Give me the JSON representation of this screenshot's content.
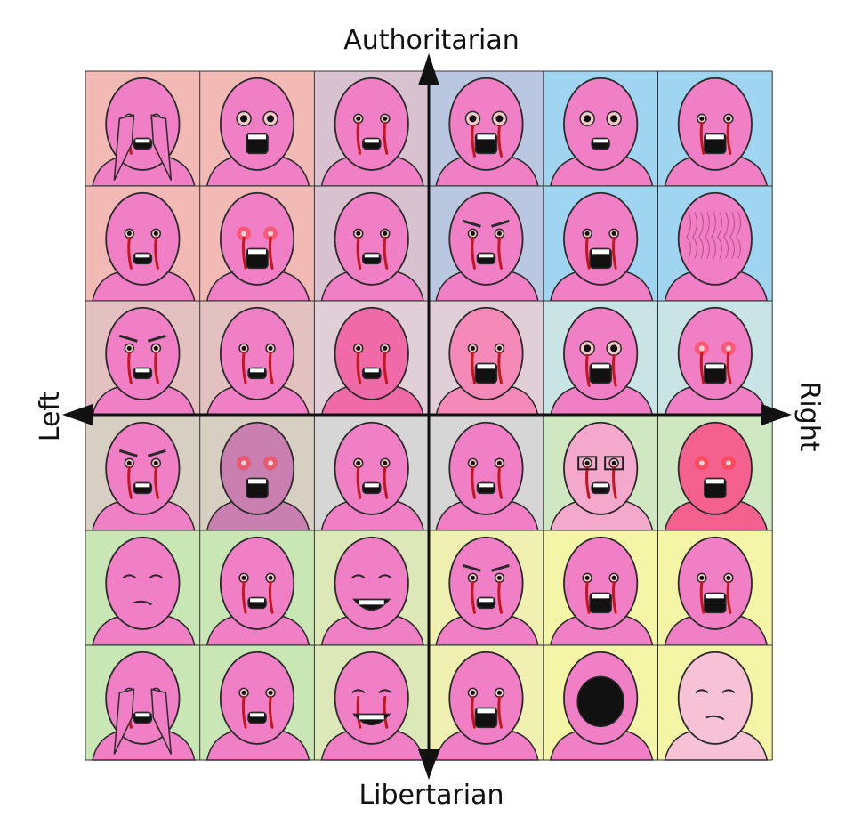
{
  "axes": {
    "top": "Authoritarian",
    "bottom": "Libertarian",
    "left": "Left",
    "right": "Right"
  },
  "grid": {
    "rows": 6,
    "cols": 6,
    "cells": [
      {
        "bg": "#f2b9b5",
        "head": "#f07fc6",
        "eyes": "hands",
        "tears": true
      },
      {
        "bg": "#f2b9b5",
        "head": "#f07fc6",
        "eyes": "wide",
        "tears": false
      },
      {
        "bg": "#d9c2cf",
        "head": "#f07fc6",
        "eyes": "small",
        "tears": true
      },
      {
        "bg": "#b9c8e0",
        "head": "#f07fc6",
        "eyes": "wide",
        "tears": true
      },
      {
        "bg": "#9fd5f0",
        "head": "#f07fc6",
        "eyes": "bulging",
        "tears": false
      },
      {
        "bg": "#9fd5f0",
        "head": "#f07fc6",
        "eyes": "crying",
        "tears": true
      },
      {
        "bg": "#f2b9b5",
        "head": "#f07fc6",
        "eyes": "sad",
        "tears": true
      },
      {
        "bg": "#f2b9b5",
        "head": "#f07fc6",
        "eyes": "glowing",
        "tears": true
      },
      {
        "bg": "#d9c2cf",
        "head": "#f07fc6",
        "eyes": "small",
        "tears": true
      },
      {
        "bg": "#b9c8e0",
        "head": "#f07fc6",
        "eyes": "angry",
        "tears": true
      },
      {
        "bg": "#9fd5f0",
        "head": "#f07fc6",
        "eyes": "crying",
        "tears": true
      },
      {
        "bg": "#9fd5f0",
        "head": "#f07fc6",
        "eyes": "brain",
        "tears": false
      },
      {
        "bg": "#e3c1c0",
        "head": "#f07fc6",
        "eyes": "angry",
        "tears": true
      },
      {
        "bg": "#e3c1c0",
        "head": "#f07fc6",
        "eyes": "small",
        "tears": true
      },
      {
        "bg": "#e0cfd6",
        "head": "#f06aa8",
        "eyes": "small",
        "tears": true
      },
      {
        "bg": "#e0cfd6",
        "head": "#f58ab8",
        "eyes": "crying",
        "tears": true
      },
      {
        "bg": "#c9e4e4",
        "head": "#f07fc6",
        "eyes": "wide",
        "tears": true
      },
      {
        "bg": "#c9e4e4",
        "head": "#f07fc6",
        "eyes": "glowing",
        "tears": true
      },
      {
        "bg": "#d6cfc2",
        "head": "#f07fc6",
        "eyes": "angry",
        "tears": true
      },
      {
        "bg": "#d6cfc2",
        "head": "#c97fb0",
        "eyes": "glowing",
        "tears": false
      },
      {
        "bg": "#d6d6d6",
        "head": "#f07fc6",
        "eyes": "small",
        "tears": true
      },
      {
        "bg": "#d6d6d6",
        "head": "#f07fc6",
        "eyes": "small",
        "tears": true
      },
      {
        "bg": "#d0e8c2",
        "head": "#f3a8cc",
        "eyes": "glasses",
        "tears": true
      },
      {
        "bg": "#d0e8c2",
        "head": "#f4618e",
        "eyes": "glowing",
        "tears": false
      },
      {
        "bg": "#c9e7b5",
        "head": "#f07fc6",
        "eyes": "smug",
        "tears": false
      },
      {
        "bg": "#c9e7b5",
        "head": "#f07fc6",
        "eyes": "small",
        "tears": true
      },
      {
        "bg": "#dde8b8",
        "head": "#f07fc6",
        "eyes": "laugh",
        "tears": false
      },
      {
        "bg": "#f0f0b0",
        "head": "#f07fc6",
        "eyes": "angry",
        "tears": true
      },
      {
        "bg": "#f5f5a8",
        "head": "#f07fc6",
        "eyes": "crying",
        "tears": true
      },
      {
        "bg": "#f5f5a8",
        "head": "#f07fc6",
        "eyes": "crying",
        "tears": true
      },
      {
        "bg": "#c9e7b5",
        "head": "#f07fc6",
        "eyes": "hands",
        "tears": true
      },
      {
        "bg": "#c9e7b5",
        "head": "#f07fc6",
        "eyes": "small",
        "tears": true
      },
      {
        "bg": "#dde8b8",
        "head": "#f07fc6",
        "eyes": "laugh",
        "tears": true
      },
      {
        "bg": "#f0f0b0",
        "head": "#f07fc6",
        "eyes": "crying",
        "tears": true
      },
      {
        "bg": "#f5f5a8",
        "head": "#f07fc6",
        "eyes": "mouth",
        "tears": false
      },
      {
        "bg": "#f5f5a8",
        "head": "#f7c1d6",
        "eyes": "smug",
        "tears": false
      }
    ]
  },
  "colors": {
    "axis": "#111111",
    "outline": "#2a2a2a",
    "tear": "#c4161c",
    "mouth": "#111111",
    "teeth": "#ffffff"
  }
}
